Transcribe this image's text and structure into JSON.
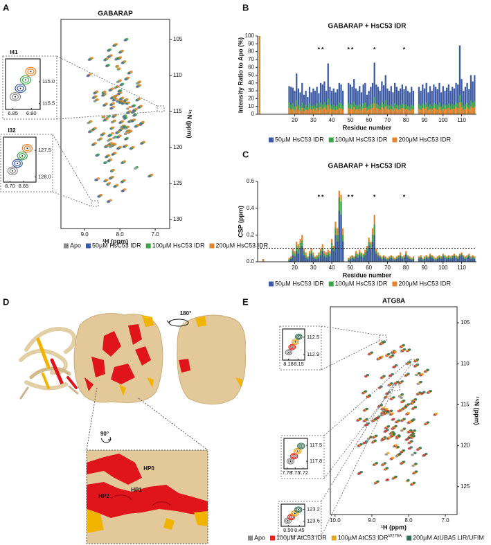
{
  "panel_labels": [
    "A",
    "B",
    "C",
    "D",
    "E"
  ],
  "chart_data": [
    {
      "type": "spectrum",
      "title": "GABARAP",
      "xlabel": "¹H (ppm)",
      "ylabel": "¹⁵N (ppm)",
      "xlim": [
        9.67,
        6.59
      ],
      "ylim": [
        102.2,
        131.25
      ],
      "xticks": [
        {
          "value": 9,
          "label": "9.0"
        },
        {
          "value": 8,
          "label": "8.0"
        },
        {
          "value": 7,
          "label": "7.0"
        }
      ],
      "yticks": [
        105,
        110,
        115,
        120,
        125,
        130
      ],
      "series": [
        {
          "name": "Apo",
          "color": "#8c8c8c"
        },
        {
          "name": "50µM HsC53 IDR",
          "color": "#3b5aa3"
        },
        {
          "name": "100µM HsC53 IDR",
          "color": "#3da34a"
        },
        {
          "name": "200µM HsC53 IDR",
          "color": "#e8842c"
        }
      ],
      "insets": [
        {
          "label": "I41",
          "xlim": [
            6.87,
            6.776
          ],
          "ylim": [
            114.48,
            115.63
          ],
          "xticks": [
            6.85,
            {
              "value": 6.8,
              "label": "6.80"
            }
          ],
          "yticks": [
            {
              "value": 115,
              "label": "115.0"
            },
            115.5
          ]
        },
        {
          "label": "I32",
          "xlim": [
            8.724,
            8.604
          ],
          "ylim": [
            127.25,
            128.1
          ],
          "xticks": [
            {
              "value": 8.7,
              "label": "8.70"
            },
            8.65
          ],
          "yticks": [
            127.5,
            {
              "value": 128,
              "label": "128.0"
            }
          ]
        }
      ]
    },
    {
      "type": "bar",
      "title": "GABARAP + HsC53 IDR",
      "xlabel": "Residue number",
      "ylabel": "Intensity Ratio to Apo (%)",
      "xlim": [
        0,
        118
      ],
      "ylim": [
        0,
        100
      ],
      "xticks": [
        20,
        30,
        40,
        50,
        60,
        70,
        80,
        90,
        100,
        110
      ],
      "yticks": [
        0,
        10,
        20,
        30,
        40,
        50,
        60,
        70,
        80,
        90,
        100
      ],
      "significance": {
        "label": "*",
        "x": [
          33,
          35,
          49,
          51,
          63,
          79
        ]
      },
      "x": [
        1,
        17,
        18,
        19,
        20,
        21,
        22,
        23,
        24,
        25,
        26,
        27,
        28,
        29,
        30,
        31,
        32,
        33,
        34,
        35,
        36,
        37,
        38,
        39,
        40,
        41,
        42,
        43,
        44,
        45,
        46,
        49,
        50,
        51,
        52,
        53,
        54,
        55,
        56,
        57,
        58,
        59,
        60,
        61,
        62,
        63,
        64,
        65,
        66,
        67,
        68,
        69,
        70,
        71,
        72,
        73,
        74,
        75,
        76,
        77,
        78,
        79,
        80,
        81,
        82,
        83,
        84,
        87,
        88,
        89,
        90,
        91,
        92,
        93,
        94,
        95,
        96,
        97,
        98,
        99,
        100,
        101,
        102,
        103,
        104,
        105,
        106,
        107,
        108,
        109,
        110,
        111,
        112,
        113,
        114,
        115,
        116,
        117
      ],
      "series": [
        {
          "name": "50µM HsC53 IDR",
          "color": "#3b5aa3",
          "values": [
            100,
            36,
            35,
            34,
            30,
            52,
            33,
            28,
            40,
            25,
            30,
            22,
            35,
            28,
            33,
            30,
            35,
            27,
            40,
            38,
            42,
            30,
            65,
            35,
            30,
            33,
            28,
            32,
            40,
            38,
            30,
            40,
            38,
            35,
            45,
            33,
            30,
            36,
            28,
            38,
            40,
            25,
            30,
            35,
            40,
            66,
            38,
            35,
            30,
            42,
            37,
            50,
            33,
            30,
            36,
            28,
            40,
            35,
            30,
            33,
            38,
            32,
            36,
            30,
            28,
            35,
            30,
            35,
            30,
            38,
            33,
            40,
            28,
            36,
            30,
            38,
            35,
            32,
            40,
            28,
            36,
            30,
            34,
            38,
            30,
            35,
            33,
            40,
            38,
            88,
            45,
            30,
            35,
            40,
            32,
            50,
            42,
            50
          ]
        },
        {
          "name": "100µM HsC53 IDR",
          "color": "#3da34a",
          "values": [
            100,
            15,
            12,
            14,
            10,
            18,
            12,
            10,
            15,
            8,
            12,
            9,
            14,
            11,
            12,
            10,
            14,
            9,
            15,
            13,
            16,
            12,
            20,
            13,
            11,
            12,
            10,
            12,
            15,
            14,
            11,
            14,
            13,
            12,
            16,
            12,
            11,
            13,
            10,
            14,
            15,
            9,
            11,
            13,
            14,
            22,
            14,
            12,
            11,
            15,
            13,
            18,
            12,
            11,
            13,
            10,
            14,
            12,
            11,
            12,
            14,
            12,
            13,
            11,
            10,
            12,
            11,
            13,
            11,
            14,
            12,
            15,
            10,
            13,
            11,
            14,
            13,
            12,
            15,
            10,
            13,
            11,
            12,
            14,
            11,
            13,
            12,
            15,
            14,
            25,
            16,
            11,
            13,
            15,
            12,
            18,
            15,
            17
          ]
        },
        {
          "name": "200µM HsC53 IDR",
          "color": "#e8842c",
          "values": [
            100,
            8,
            6,
            7,
            5,
            10,
            6,
            5,
            8,
            4,
            6,
            5,
            7,
            6,
            7,
            5,
            8,
            5,
            9,
            7,
            9,
            6,
            12,
            7,
            6,
            6,
            5,
            6,
            8,
            7,
            6,
            8,
            7,
            6,
            9,
            6,
            6,
            7,
            5,
            8,
            8,
            5,
            6,
            7,
            8,
            14,
            8,
            7,
            6,
            9,
            7,
            10,
            7,
            6,
            7,
            5,
            8,
            7,
            6,
            7,
            8,
            7,
            7,
            6,
            5,
            7,
            6,
            7,
            6,
            8,
            7,
            9,
            5,
            7,
            6,
            8,
            7,
            6,
            9,
            5,
            7,
            6,
            7,
            8,
            6,
            7,
            7,
            9,
            8,
            15,
            9,
            6,
            7,
            9,
            7,
            10,
            8,
            10
          ]
        }
      ]
    },
    {
      "type": "bar",
      "title": "GABARAP + HsC53 IDR",
      "xlabel": "Residue number",
      "ylabel": "CSP (ppm)",
      "xlim": [
        0,
        118
      ],
      "ylim": [
        0,
        0.6
      ],
      "xticks": [
        20,
        30,
        40,
        50,
        60,
        70,
        80,
        90,
        100,
        110
      ],
      "yticks": [
        {
          "value": 0,
          "label": "0.0"
        },
        0.2,
        0.4,
        0.6
      ],
      "threshold": 0.1,
      "significance": {
        "label": "*",
        "x": [
          33,
          35,
          49,
          51,
          63,
          79
        ]
      },
      "x": [
        3,
        17,
        18,
        19,
        20,
        21,
        22,
        23,
        24,
        25,
        26,
        27,
        28,
        29,
        30,
        31,
        32,
        33,
        34,
        35,
        36,
        37,
        38,
        39,
        40,
        41,
        42,
        43,
        44,
        45,
        46,
        49,
        50,
        51,
        52,
        53,
        54,
        55,
        56,
        57,
        58,
        59,
        60,
        61,
        62,
        63,
        64,
        65,
        66,
        67,
        68,
        69,
        70,
        71,
        72,
        73,
        74,
        75,
        76,
        77,
        78,
        79,
        80,
        81,
        82,
        83,
        84,
        87,
        88,
        89,
        90,
        91,
        92,
        93,
        94,
        95,
        96,
        97,
        98,
        99,
        100,
        101,
        102,
        103,
        104,
        105,
        106,
        107,
        108,
        109,
        110,
        111,
        112,
        113,
        114,
        115,
        116,
        117
      ],
      "series": [
        {
          "name": "50µM HsC53 IDR",
          "color": "#3b5aa3",
          "values": [
            0.02,
            0.01,
            0.02,
            0.05,
            0.04,
            0.08,
            0.06,
            0.1,
            0.12,
            0.05,
            0.03,
            0.02,
            0.04,
            0.06,
            0.03,
            0.02,
            0.02,
            0.03,
            0.05,
            0.08,
            0.04,
            0.03,
            0.05,
            0.04,
            0.1,
            0.08,
            0.2,
            0.15,
            0.38,
            0.35,
            0.15,
            0.01,
            0.02,
            0.03,
            0.02,
            0.04,
            0.03,
            0.05,
            0.04,
            0.03,
            0.05,
            0.08,
            0.12,
            0.1,
            0.15,
            0.2,
            0.06,
            0.04,
            0.03,
            0.02,
            0.03,
            0.02,
            0.01,
            0.02,
            0.03,
            0.02,
            0.01,
            0.02,
            0.03,
            0.04,
            0.02,
            0.03,
            0.05,
            0.03,
            0.02,
            0.01,
            0.02,
            0.02,
            0.03,
            0.01,
            0.02,
            0.03,
            0.02,
            0.04,
            0.03,
            0.02,
            0.01,
            0.02,
            0.03,
            0.02,
            0.04,
            0.03,
            0.02,
            0.03,
            0.02,
            0.03,
            0.04,
            0.03,
            0.02,
            0.04,
            0.05,
            0.03,
            0.02,
            0.03,
            0.04,
            0.02,
            0.03,
            0.02
          ]
        },
        {
          "name": "100µM HsC53 IDR",
          "color": "#3da34a",
          "values": [
            0.02,
            0.02,
            0.03,
            0.08,
            0.06,
            0.12,
            0.1,
            0.14,
            0.16,
            0.08,
            0.05,
            0.03,
            0.06,
            0.08,
            0.05,
            0.03,
            0.04,
            0.05,
            0.08,
            0.1,
            0.06,
            0.05,
            0.07,
            0.06,
            0.14,
            0.1,
            0.25,
            0.2,
            0.48,
            0.45,
            0.2,
            0.02,
            0.03,
            0.04,
            0.03,
            0.06,
            0.05,
            0.07,
            0.06,
            0.05,
            0.07,
            0.1,
            0.15,
            0.13,
            0.2,
            0.28,
            0.08,
            0.05,
            0.04,
            0.03,
            0.04,
            0.03,
            0.02,
            0.03,
            0.04,
            0.03,
            0.02,
            0.03,
            0.04,
            0.05,
            0.03,
            0.04,
            0.06,
            0.04,
            0.03,
            0.02,
            0.03,
            0.03,
            0.04,
            0.02,
            0.03,
            0.04,
            0.03,
            0.05,
            0.04,
            0.03,
            0.02,
            0.03,
            0.04,
            0.03,
            0.05,
            0.04,
            0.03,
            0.04,
            0.03,
            0.04,
            0.05,
            0.04,
            0.03,
            0.05,
            0.06,
            0.04,
            0.03,
            0.04,
            0.05,
            0.03,
            0.04,
            0.03
          ]
        },
        {
          "name": "200µM HsC53 IDR",
          "color": "#e8842c",
          "values": [
            0.02,
            0.03,
            0.04,
            0.1,
            0.08,
            0.15,
            0.13,
            0.17,
            0.2,
            0.1,
            0.07,
            0.04,
            0.08,
            0.1,
            0.07,
            0.04,
            0.05,
            0.07,
            0.1,
            0.13,
            0.08,
            0.07,
            0.09,
            0.08,
            0.17,
            0.12,
            0.3,
            0.25,
            0.53,
            0.5,
            0.25,
            0.03,
            0.04,
            0.05,
            0.04,
            0.08,
            0.06,
            0.09,
            0.07,
            0.06,
            0.09,
            0.12,
            0.18,
            0.15,
            0.25,
            0.35,
            0.1,
            0.07,
            0.05,
            0.04,
            0.05,
            0.04,
            0.03,
            0.04,
            0.05,
            0.04,
            0.03,
            0.04,
            0.05,
            0.07,
            0.04,
            0.05,
            0.08,
            0.05,
            0.04,
            0.03,
            0.04,
            0.04,
            0.05,
            0.03,
            0.04,
            0.05,
            0.04,
            0.06,
            0.05,
            0.04,
            0.03,
            0.04,
            0.05,
            0.04,
            0.06,
            0.05,
            0.04,
            0.05,
            0.04,
            0.05,
            0.06,
            0.05,
            0.04,
            0.06,
            0.07,
            0.05,
            0.04,
            0.05,
            0.06,
            0.04,
            0.05,
            0.04
          ]
        }
      ]
    },
    {
      "type": "spectrum",
      "title": "ATG8A",
      "xlabel": "¹H (ppm)",
      "ylabel": "¹⁵N (ppm)",
      "xlim": [
        10.13,
        6.68
      ],
      "ylim": [
        103.05,
        128.4
      ],
      "xticks": [
        {
          "value": 10,
          "label": "10.0"
        },
        {
          "value": 9,
          "label": "9.0"
        },
        {
          "value": 8,
          "label": "8.0"
        },
        {
          "value": 7,
          "label": "7.0"
        }
      ],
      "yticks": [
        105,
        110,
        115,
        120,
        125
      ],
      "series": [
        {
          "name": "Apo",
          "color": "#8c8c8c"
        },
        {
          "name": "100µM AtC53 IDR",
          "color": "#e3241d"
        },
        {
          "name": "100µM AtC53 IDR",
          "name_superscript": "W276A",
          "color": "#e8a41c"
        },
        {
          "name": "200µM AtUBA5 LIR/UFIM",
          "color": "#2f6e52"
        }
      ],
      "insets": [
        {
          "xlim": [
            8.197,
            8.133
          ],
          "ylim": [
            112.31,
            113.03
          ],
          "xticks": [
            8.18,
            8.15
          ],
          "yticks": [
            112.5,
            112.9
          ]
        },
        {
          "xlim": [
            7.792,
            7.704
          ],
          "ylim": [
            117.37,
            117.94
          ],
          "xticks": [
            7.78,
            7.75,
            7.72
          ],
          "yticks": [
            117.5,
            117.8
          ]
        },
        {
          "xlim": [
            8.532,
            8.426
          ],
          "ylim": [
            123.07,
            123.63
          ],
          "xticks": [
            {
              "value": 8.5,
              "label": "8.50"
            },
            8.45
          ],
          "yticks": [
            123.2,
            123.5
          ]
        }
      ]
    }
  ],
  "structure": {
    "rotation_1": "180°",
    "rotation_2": "90°",
    "patches": [
      "HP0",
      "HP1",
      "HP2"
    ]
  }
}
